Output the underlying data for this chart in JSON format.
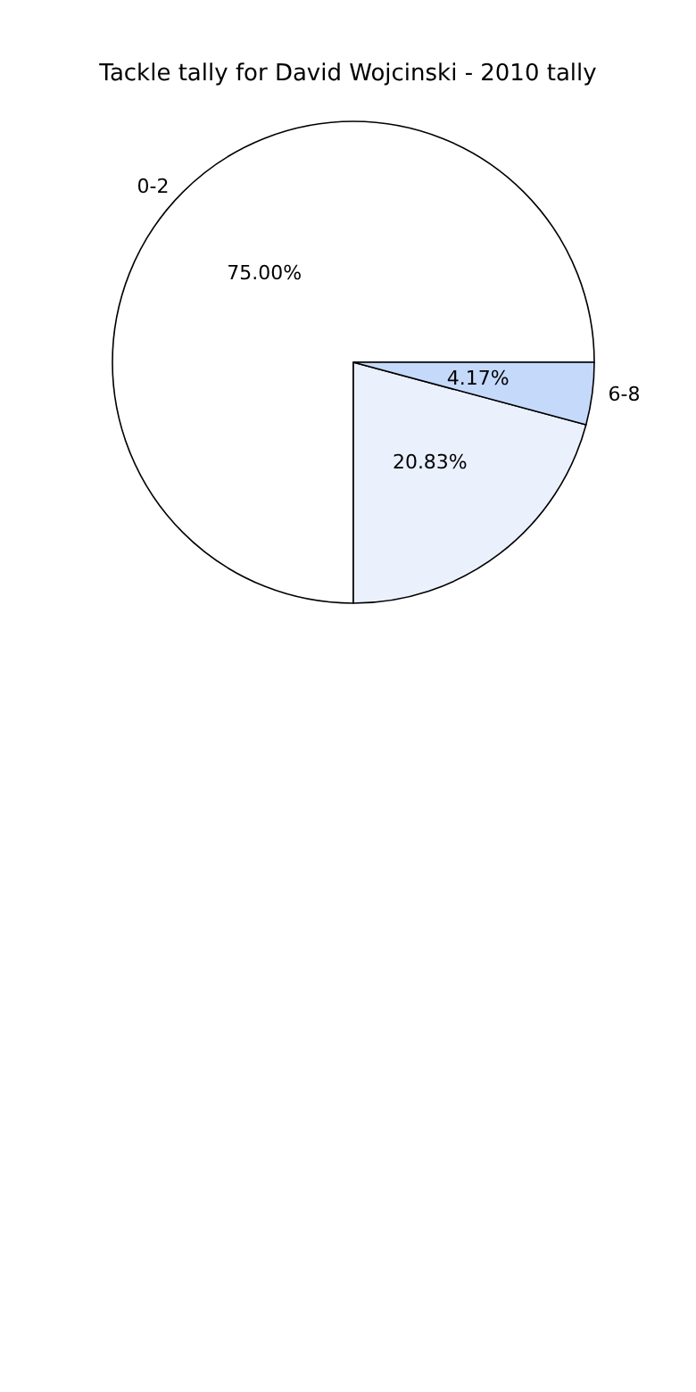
{
  "chart_data": {
    "type": "pie",
    "title": "Tackle tally for David Wojcinski - 2010 tally",
    "categories": [
      "0-2",
      null,
      "6-8"
    ],
    "values": [
      75,
      20.83,
      4.17
    ],
    "value_labels": [
      "75.00%",
      "20.83%",
      "4.17%"
    ],
    "colors": [
      "#ffffff",
      "#eaf1fd",
      "#c5d9fb"
    ],
    "legend": false
  }
}
